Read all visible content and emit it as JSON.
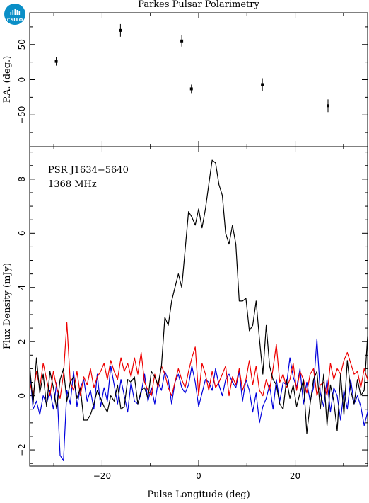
{
  "title": "Parkes Pulsar Polarimetry",
  "logo": {
    "text": "CSIRO",
    "color": "#0a8fc7"
  },
  "chart_data": [
    {
      "type": "scatter",
      "panel": "top",
      "ylabel": "P.A. (deg.)",
      "xlim": [
        -35,
        35
      ],
      "ylim": [
        -95,
        95
      ],
      "yticks": [
        -50,
        0,
        50
      ],
      "ytick_labels": [
        "−50",
        "0",
        "50"
      ],
      "points": [
        {
          "x": -29.5,
          "y": 26,
          "err": 6
        },
        {
          "x": -16.2,
          "y": 70,
          "err": 9
        },
        {
          "x": -3.5,
          "y": 55,
          "err": 8
        },
        {
          "x": -1.5,
          "y": -13,
          "err": 6
        },
        {
          "x": 13.2,
          "y": -7,
          "err": 9
        },
        {
          "x": 26.8,
          "y": -37,
          "err": 9
        }
      ]
    },
    {
      "type": "line",
      "panel": "bottom",
      "xlabel": "Pulse Longitude (deg)",
      "ylabel": "Flux Density (mJy)",
      "xlim": [
        -35,
        35
      ],
      "ylim": [
        -2.6,
        9.2
      ],
      "xticks": [
        -20,
        0,
        20
      ],
      "xtick_labels": [
        "−20",
        "0",
        "20"
      ],
      "yticks": [
        -2,
        0,
        2,
        4,
        6,
        8
      ],
      "ytick_labels": [
        "−2",
        "0",
        "2",
        "4",
        "6",
        "8"
      ],
      "annotation": [
        "PSR J1634−5640",
        "1368 MHz"
      ],
      "x_start": -35,
      "x_step": 0.7,
      "series": [
        {
          "color": "#000000",
          "values": [
            1.1,
            -0.3,
            1.4,
            0.1,
            0.8,
            -0.4,
            0.9,
            0.3,
            -0.5,
            0.6,
            1.0,
            -0.2,
            0.5,
            0.7,
            -0.1,
            0.3,
            -0.9,
            -0.9,
            -0.7,
            -0.3,
            0.2,
            -0.1,
            -0.4,
            -0.6,
            0.0,
            -0.2,
            0.4,
            -0.5,
            -0.4,
            0.6,
            0.5,
            0.7,
            -0.3,
            0.2,
            0.3,
            -0.1,
            0.9,
            0.7,
            0.4,
            1.1,
            2.9,
            2.6,
            3.5,
            4.0,
            4.5,
            4.0,
            5.4,
            6.8,
            6.6,
            6.3,
            6.9,
            6.2,
            6.9,
            7.8,
            8.7,
            8.6,
            7.8,
            7.4,
            6.0,
            5.6,
            6.3,
            5.6,
            3.5,
            3.5,
            3.6,
            2.4,
            2.6,
            3.5,
            2.1,
            0.8,
            2.6,
            1.1,
            0.6,
            0.4,
            -0.3,
            -0.5,
            0.6,
            -0.1,
            0.4,
            -0.4,
            0.1,
            0.6,
            -1.4,
            -0.3,
            0.6,
            0.9,
            -0.5,
            0.8,
            -1.1,
            0.4,
            -0.2,
            -1.3,
            0.8,
            -0.7,
            1.3,
            0.2,
            -0.3,
            0.6,
            0.0,
            0.2,
            2.2,
            -0.1,
            0.4,
            0.9,
            0.6
          ]
        },
        {
          "color": "#ee0000",
          "values": [
            0.5,
            0.0,
            0.9,
            0.3,
            1.2,
            0.6,
            0.0,
            0.9,
            0.3,
            -0.1,
            0.8,
            2.7,
            0.5,
            0.2,
            0.9,
            0.0,
            0.7,
            0.4,
            1.0,
            0.3,
            0.7,
            0.9,
            1.2,
            0.6,
            1.3,
            0.9,
            0.6,
            1.4,
            0.9,
            1.2,
            0.7,
            1.4,
            0.8,
            1.6,
            0.5,
            0.2,
            0.0,
            0.8,
            0.3,
            1.1,
            0.8,
            0.3,
            0.0,
            0.5,
            1.0,
            0.6,
            0.3,
            0.9,
            1.4,
            1.8,
            0.0,
            1.2,
            0.8,
            0.2,
            0.9,
            0.3,
            0.5,
            0.8,
            1.1,
            0.0,
            0.7,
            0.4,
            1.0,
            0.2,
            0.6,
            1.3,
            0.4,
            1.1,
            0.2,
            0.0,
            0.6,
            0.2,
            1.0,
            1.9,
            0.5,
            0.8,
            0.3,
            0.6,
            1.2,
            0.2,
            0.9,
            0.6,
            0.1,
            0.8,
            1.0,
            0.0,
            0.4,
            0.5,
            0.0,
            1.2,
            0.6,
            1.0,
            0.8,
            1.3,
            1.6,
            1.2,
            0.8,
            0.9,
            0.3,
            1.0,
            0.6,
            1.1,
            0.7,
            1.0,
            0.8
          ]
        },
        {
          "color": "#0000dd",
          "values": [
            1.0,
            -0.5,
            -0.2,
            -0.7,
            0.0,
            -0.3,
            0.2,
            -0.5,
            0.5,
            -2.2,
            -2.4,
            0.2,
            -0.3,
            0.9,
            -0.4,
            0.3,
            0.6,
            -0.2,
            0.2,
            -0.5,
            0.8,
            -0.4,
            0.3,
            -0.2,
            1.1,
            0.4,
            -0.3,
            0.6,
            0.0,
            -0.6,
            0.5,
            -0.2,
            -0.3,
            0.1,
            0.8,
            -0.2,
            0.3,
            -0.3,
            0.5,
            0.2,
            0.9,
            0.6,
            -0.3,
            0.5,
            0.8,
            0.3,
            0.1,
            0.4,
            1.1,
            0.5,
            -0.4,
            0.1,
            0.6,
            0.5,
            0.2,
            1.0,
            0.4,
            0.0,
            0.6,
            0.8,
            0.5,
            0.3,
            0.9,
            -0.2,
            0.6,
            0.2,
            -0.6,
            0.1,
            -1.0,
            -0.4,
            -0.1,
            0.4,
            -0.5,
            0.6,
            -0.2,
            0.5,
            0.4,
            1.4,
            0.7,
            0.3,
            1.0,
            -0.3,
            0.5,
            -0.2,
            0.3,
            2.1,
            0.1,
            -0.4,
            0.6,
            -0.6,
            0.3,
            0.0,
            -0.9,
            0.2,
            -0.5,
            0.6,
            -0.3,
            0.0,
            -0.4,
            -1.1,
            -0.6,
            0.3,
            0.6,
            -0.2,
            0.5
          ]
        }
      ]
    }
  ]
}
